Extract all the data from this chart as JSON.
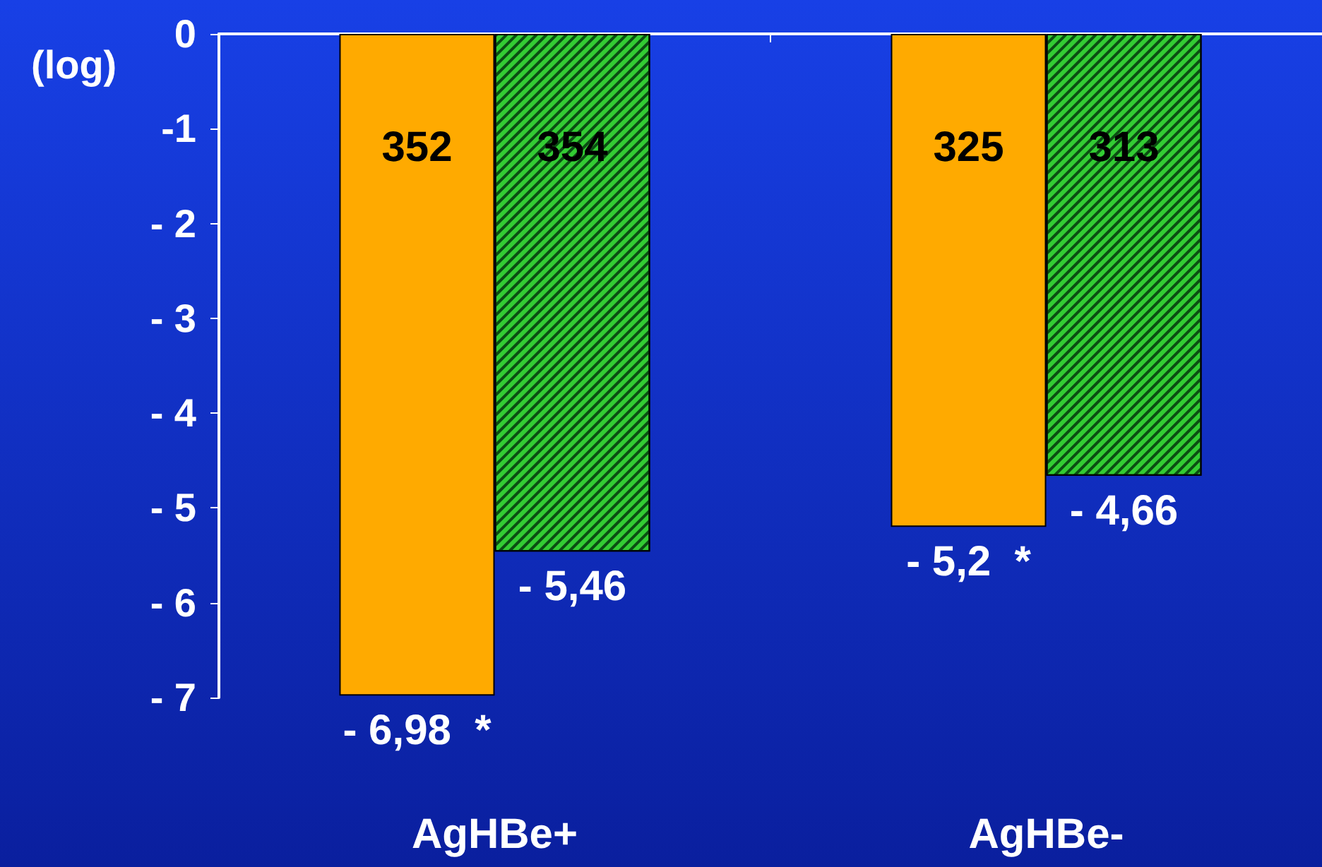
{
  "chart_data": {
    "type": "bar",
    "ylabel": "(log)",
    "categories": [
      "AgHBe+",
      "AgHBe-"
    ],
    "series": [
      {
        "color": "#ffaa00",
        "values": [
          -6.98,
          -5.2
        ],
        "value_labels": [
          "- 6,98  *",
          "- 5,2  *"
        ]
      },
      {
        "color": "#33cc33",
        "values": [
          -5.46,
          -4.66
        ],
        "value_labels": [
          "- 5,46",
          "- 4,66"
        ]
      }
    ],
    "ylim": [
      -7,
      0
    ],
    "yticks": [
      0,
      -1,
      {
        "value": -2,
        "label": "- 2"
      },
      {
        "value": -3,
        "label": "- 3"
      },
      {
        "value": -4,
        "label": "- 4"
      },
      {
        "value": -5,
        "label": "- 5"
      },
      {
        "value": -6,
        "label": "- 6"
      },
      {
        "value": -7,
        "label": "- 7"
      }
    ],
    "annotations": [
      {
        "text": "352",
        "x": "AgHBe+",
        "y": -1.2
      },
      {
        "text": "354",
        "x": "AgHBe+",
        "y": -1.2
      },
      {
        "text": "325",
        "x": "AgHBe-",
        "y": -1.2
      },
      {
        "text": "313",
        "x": "AgHBe-",
        "y": -1.2
      }
    ],
    "grid": false
  }
}
